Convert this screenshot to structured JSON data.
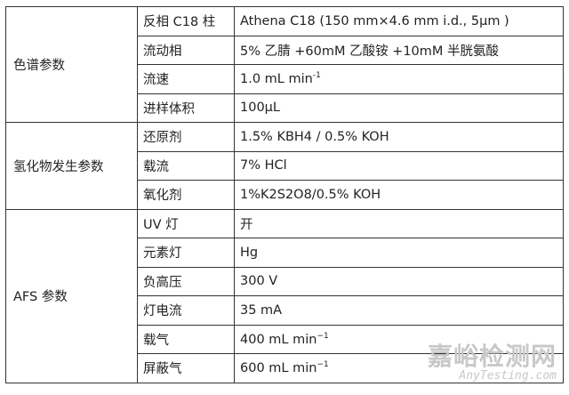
{
  "groups": [
    {
      "name": "色谱参数",
      "rows": [
        {
          "param": "反相 C18 柱",
          "value": "Athena C18 (150 mm×4.6 mm i.d., 5μm )"
        },
        {
          "param": "流动相",
          "value": "5% 乙腈 +60mM 乙酸铵 +10mM 半胱氨酸"
        },
        {
          "param": "流速",
          "value": "1.0 mL min",
          "sup": "-1"
        },
        {
          "param": "进样体积",
          "value": "100μL"
        }
      ]
    },
    {
      "name": "氢化物发生参数",
      "rows": [
        {
          "param": "还原剂",
          "value": "1.5% KBH4 / 0.5% KOH"
        },
        {
          "param": "载流",
          "value": "7% HCl"
        },
        {
          "param": "氧化剂",
          "value": "1%K2S2O8/0.5% KOH"
        }
      ]
    },
    {
      "name": "AFS 参数",
      "rows": [
        {
          "param": "UV 灯",
          "value": "开"
        },
        {
          "param": "元素灯",
          "value": "Hg"
        },
        {
          "param": "负高压",
          "value": "300 V"
        },
        {
          "param": "灯电流",
          "value": "35 mA"
        },
        {
          "param": "载气",
          "value": "400 mL min",
          "sup": "−1"
        },
        {
          "param": "屏蔽气",
          "value": "600 mL min",
          "sup": "−1"
        }
      ]
    }
  ],
  "watermark": {
    "cn": "嘉峪检测网",
    "en": "AnyTesting.com"
  }
}
